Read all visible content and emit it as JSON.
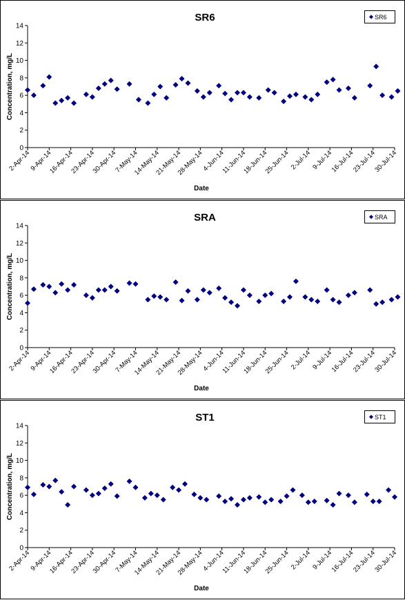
{
  "chart_data": [
    {
      "type": "scatter",
      "title": "SR6",
      "xlabel": "Date",
      "ylabel": "Concentration, mg/L",
      "ylim": [
        0,
        14
      ],
      "yticks": [
        0,
        2,
        4,
        6,
        8,
        10,
        12,
        14
      ],
      "xlim": [
        "2014-04-02",
        "2014-07-30"
      ],
      "xtick_labels": [
        "2-Apr-14",
        "9-Apr-14",
        "16-Apr-14",
        "23-Apr-14",
        "30-Apr-14",
        "7-May-14",
        "14-May-14",
        "21-May-14",
        "28-May-14",
        "4-Jun-14",
        "11-Jun-14",
        "18-Jun-14",
        "25-Jun-14",
        "2-Jul-14",
        "9-Jul-14",
        "16-Jul-14",
        "23-Jul-14",
        "30-Jul-14"
      ],
      "grid": false,
      "legend_position": "top-right",
      "marker_color": "#000080",
      "series": [
        {
          "name": "SR6",
          "x": [
            "2014-04-02",
            "2014-04-04",
            "2014-04-07",
            "2014-04-09",
            "2014-04-11",
            "2014-04-13",
            "2014-04-15",
            "2014-04-17",
            "2014-04-21",
            "2014-04-23",
            "2014-04-25",
            "2014-04-27",
            "2014-04-29",
            "2014-05-01",
            "2014-05-05",
            "2014-05-08",
            "2014-05-11",
            "2014-05-13",
            "2014-05-15",
            "2014-05-17",
            "2014-05-20",
            "2014-05-22",
            "2014-05-24",
            "2014-05-27",
            "2014-05-29",
            "2014-05-31",
            "2014-06-03",
            "2014-06-05",
            "2014-06-07",
            "2014-06-09",
            "2014-06-11",
            "2014-06-13",
            "2014-06-16",
            "2014-06-19",
            "2014-06-21",
            "2014-06-24",
            "2014-06-26",
            "2014-06-28",
            "2014-07-01",
            "2014-07-03",
            "2014-07-05",
            "2014-07-08",
            "2014-07-10",
            "2014-07-12",
            "2014-07-15",
            "2014-07-17",
            "2014-07-22",
            "2014-07-24",
            "2014-07-26",
            "2014-07-29",
            "2014-07-31"
          ],
          "y": [
            6.6,
            6.0,
            7.1,
            8.1,
            5.1,
            5.4,
            5.7,
            5.1,
            6.1,
            5.8,
            6.8,
            7.3,
            7.7,
            6.7,
            7.3,
            5.5,
            5.1,
            6.1,
            7.0,
            5.7,
            7.2,
            7.9,
            7.4,
            6.5,
            5.8,
            6.3,
            7.1,
            6.2,
            5.5,
            6.3,
            6.3,
            5.8,
            5.7,
            6.6,
            6.3,
            5.3,
            5.9,
            6.1,
            5.8,
            5.5,
            6.1,
            7.5,
            7.8,
            6.6,
            6.8,
            5.7,
            7.1,
            9.3,
            6.0,
            5.8,
            6.5
          ]
        }
      ]
    },
    {
      "type": "scatter",
      "title": "SRA",
      "xlabel": "Date",
      "ylabel": "Concentration, mg/L",
      "ylim": [
        0,
        14
      ],
      "yticks": [
        0,
        2,
        4,
        6,
        8,
        10,
        12,
        14
      ],
      "xlim": [
        "2014-04-02",
        "2014-07-30"
      ],
      "xtick_labels": [
        "2-Apr-14",
        "9-Apr-14",
        "16-Apr-14",
        "23-Apr-14",
        "30-Apr-14",
        "7-May-14",
        "14-May-14",
        "21-May-14",
        "28-May-14",
        "4-Jun-14",
        "11-Jun-14",
        "18-Jun-14",
        "25-Jun-14",
        "2-Jul-14",
        "9-Jul-14",
        "16-Jul-14",
        "23-Jul-14",
        "30-Jul-14"
      ],
      "grid": false,
      "legend_position": "top-right",
      "marker_color": "#000080",
      "series": [
        {
          "name": "SRA",
          "x": [
            "2014-04-02",
            "2014-04-04",
            "2014-04-07",
            "2014-04-09",
            "2014-04-11",
            "2014-04-13",
            "2014-04-15",
            "2014-04-17",
            "2014-04-21",
            "2014-04-23",
            "2014-04-25",
            "2014-04-27",
            "2014-04-29",
            "2014-05-01",
            "2014-05-05",
            "2014-05-07",
            "2014-05-11",
            "2014-05-13",
            "2014-05-15",
            "2014-05-17",
            "2014-05-20",
            "2014-05-22",
            "2014-05-24",
            "2014-05-27",
            "2014-05-29",
            "2014-05-31",
            "2014-06-03",
            "2014-06-05",
            "2014-06-07",
            "2014-06-09",
            "2014-06-11",
            "2014-06-13",
            "2014-06-16",
            "2014-06-18",
            "2014-06-20",
            "2014-06-24",
            "2014-06-26",
            "2014-06-28",
            "2014-07-01",
            "2014-07-03",
            "2014-07-05",
            "2014-07-08",
            "2014-07-10",
            "2014-07-12",
            "2014-07-15",
            "2014-07-17",
            "2014-07-22",
            "2014-07-24",
            "2014-07-26",
            "2014-07-29",
            "2014-07-31"
          ],
          "y": [
            5.1,
            6.7,
            7.2,
            7.0,
            6.3,
            7.3,
            6.6,
            7.2,
            6.0,
            5.7,
            6.6,
            6.6,
            7.0,
            6.5,
            7.4,
            7.3,
            5.5,
            5.9,
            5.8,
            5.5,
            7.5,
            5.4,
            6.5,
            5.5,
            6.6,
            6.3,
            6.8,
            5.7,
            5.2,
            4.8,
            6.6,
            6.0,
            5.3,
            6.0,
            6.2,
            5.3,
            5.8,
            7.6,
            5.8,
            5.5,
            5.3,
            6.6,
            5.5,
            5.2,
            6.0,
            6.3,
            6.6,
            5.0,
            5.2,
            5.5,
            5.8
          ]
        }
      ]
    },
    {
      "type": "scatter",
      "title": "ST1",
      "xlabel": "Date",
      "ylabel": "Concentration, mg/L",
      "ylim": [
        0,
        14
      ],
      "yticks": [
        0,
        2,
        4,
        6,
        8,
        10,
        12,
        14
      ],
      "xlim": [
        "2014-04-02",
        "2014-07-30"
      ],
      "xtick_labels": [
        "2-Apr-14",
        "9-Apr-14",
        "16-Apr-14",
        "23-Apr-14",
        "30-Apr-14",
        "7-May-14",
        "14-May-14",
        "21-May-14",
        "28-May-14",
        "4-Jun-14",
        "11-Jun-14",
        "18-Jun-14",
        "25-Jun-14",
        "2-Jul-14",
        "9-Jul-14",
        "16-Jul-14",
        "23-Jul-14",
        "30-Jul-14"
      ],
      "grid": false,
      "legend_position": "top-right",
      "marker_color": "#000080",
      "series": [
        {
          "name": "ST1",
          "x": [
            "2014-04-02",
            "2014-04-04",
            "2014-04-07",
            "2014-04-09",
            "2014-04-11",
            "2014-04-13",
            "2014-04-15",
            "2014-04-17",
            "2014-04-21",
            "2014-04-23",
            "2014-04-25",
            "2014-04-27",
            "2014-04-29",
            "2014-05-01",
            "2014-05-05",
            "2014-05-07",
            "2014-05-10",
            "2014-05-12",
            "2014-05-14",
            "2014-05-16",
            "2014-05-19",
            "2014-05-21",
            "2014-05-23",
            "2014-05-26",
            "2014-05-28",
            "2014-05-30",
            "2014-06-03",
            "2014-06-05",
            "2014-06-07",
            "2014-06-09",
            "2014-06-11",
            "2014-06-13",
            "2014-06-16",
            "2014-06-18",
            "2014-06-20",
            "2014-06-23",
            "2014-06-25",
            "2014-06-27",
            "2014-06-30",
            "2014-07-02",
            "2014-07-04",
            "2014-07-08",
            "2014-07-10",
            "2014-07-12",
            "2014-07-15",
            "2014-07-17",
            "2014-07-21",
            "2014-07-23",
            "2014-07-25",
            "2014-07-28",
            "2014-07-30"
          ],
          "y": [
            6.9,
            6.1,
            7.2,
            7.0,
            7.7,
            6.4,
            4.9,
            7.0,
            6.6,
            6.0,
            6.2,
            6.8,
            7.3,
            5.9,
            7.6,
            6.9,
            5.7,
            6.2,
            6.0,
            5.5,
            6.9,
            6.6,
            7.3,
            6.1,
            5.7,
            5.5,
            5.9,
            5.3,
            5.6,
            4.9,
            5.5,
            5.7,
            5.8,
            5.2,
            5.5,
            5.3,
            5.9,
            6.6,
            6.0,
            5.2,
            5.3,
            5.4,
            4.9,
            6.2,
            6.0,
            5.2,
            6.1,
            5.3,
            5.3,
            6.6,
            5.8
          ]
        }
      ]
    }
  ]
}
